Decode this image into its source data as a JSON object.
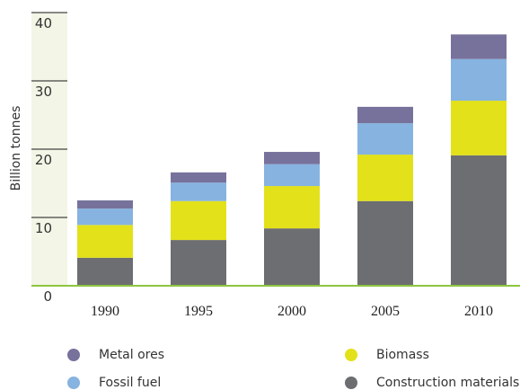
{
  "chart_data": {
    "type": "bar",
    "stacked": true,
    "y_label": "Billion tonnes",
    "categories": [
      "1990",
      "1995",
      "2000",
      "2005",
      "2010"
    ],
    "series": [
      {
        "name": "Construction materials",
        "color": "#6d6e71",
        "values": [
          4.1,
          6.7,
          8.4,
          12.4,
          19.1
        ]
      },
      {
        "name": "Biomass",
        "color": "#e2e11a",
        "values": [
          4.8,
          5.7,
          6.2,
          6.8,
          8.0
        ]
      },
      {
        "name": "Fossil fuel",
        "color": "#86b3e0",
        "values": [
          2.4,
          2.7,
          3.2,
          4.6,
          6.1
        ]
      },
      {
        "name": "Metal ores",
        "color": "#77729c",
        "values": [
          1.2,
          1.5,
          1.8,
          2.4,
          3.6
        ]
      }
    ],
    "ylim": [
      0,
      40
    ],
    "yticks": [
      0,
      10,
      20,
      30,
      40
    ]
  }
}
